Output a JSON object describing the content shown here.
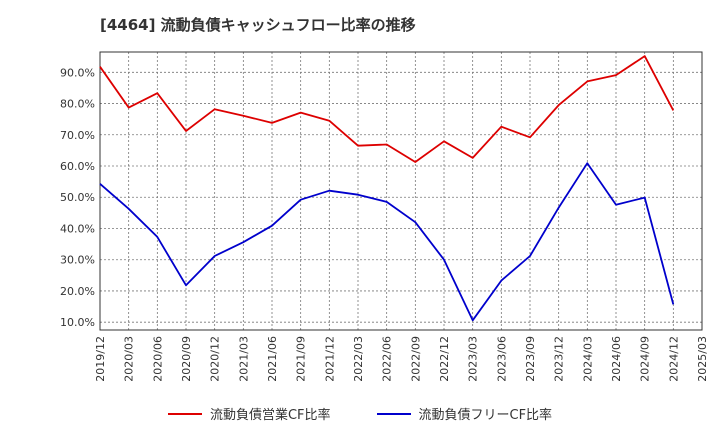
{
  "chart_data": {
    "type": "line",
    "title": "[4464]  流動負債キャッシュフロー比率の推移",
    "x": [
      "2019/12",
      "2020/03",
      "2020/06",
      "2020/09",
      "2020/12",
      "2021/03",
      "2021/06",
      "2021/09",
      "2021/12",
      "2022/03",
      "2022/06",
      "2022/09",
      "2022/12",
      "2023/03",
      "2023/06",
      "2023/09",
      "2023/12",
      "2024/03",
      "2024/06",
      "2024/09",
      "2024/12",
      "2025/03"
    ],
    "y_ticks": [
      "10.0%",
      "20.0%",
      "30.0%",
      "40.0%",
      "50.0%",
      "60.0%",
      "70.0%",
      "80.0%",
      "90.0%"
    ],
    "ylim": [
      7.5,
      96.5
    ],
    "grid": true,
    "legend_position": "bottom",
    "series": [
      {
        "name": "流動負債営業CF比率",
        "color": "#dd0000",
        "values": [
          91.8,
          78.7,
          83.3,
          71.2,
          78.2,
          76.1,
          73.8,
          77.1,
          74.5,
          66.5,
          66.9,
          61.3,
          67.9,
          62.6,
          72.6,
          69.2,
          79.5,
          87.1,
          89.1,
          95.2,
          77.8,
          null
        ]
      },
      {
        "name": "流動負債フリーCF比率",
        "color": "#0000cc",
        "values": [
          54.3,
          46.3,
          37.3,
          21.8,
          31.2,
          35.6,
          40.9,
          49.2,
          52.1,
          50.8,
          48.5,
          42.0,
          30.0,
          10.6,
          23.3,
          31.2,
          46.7,
          60.9,
          47.6,
          49.9,
          15.7,
          null
        ]
      }
    ]
  }
}
